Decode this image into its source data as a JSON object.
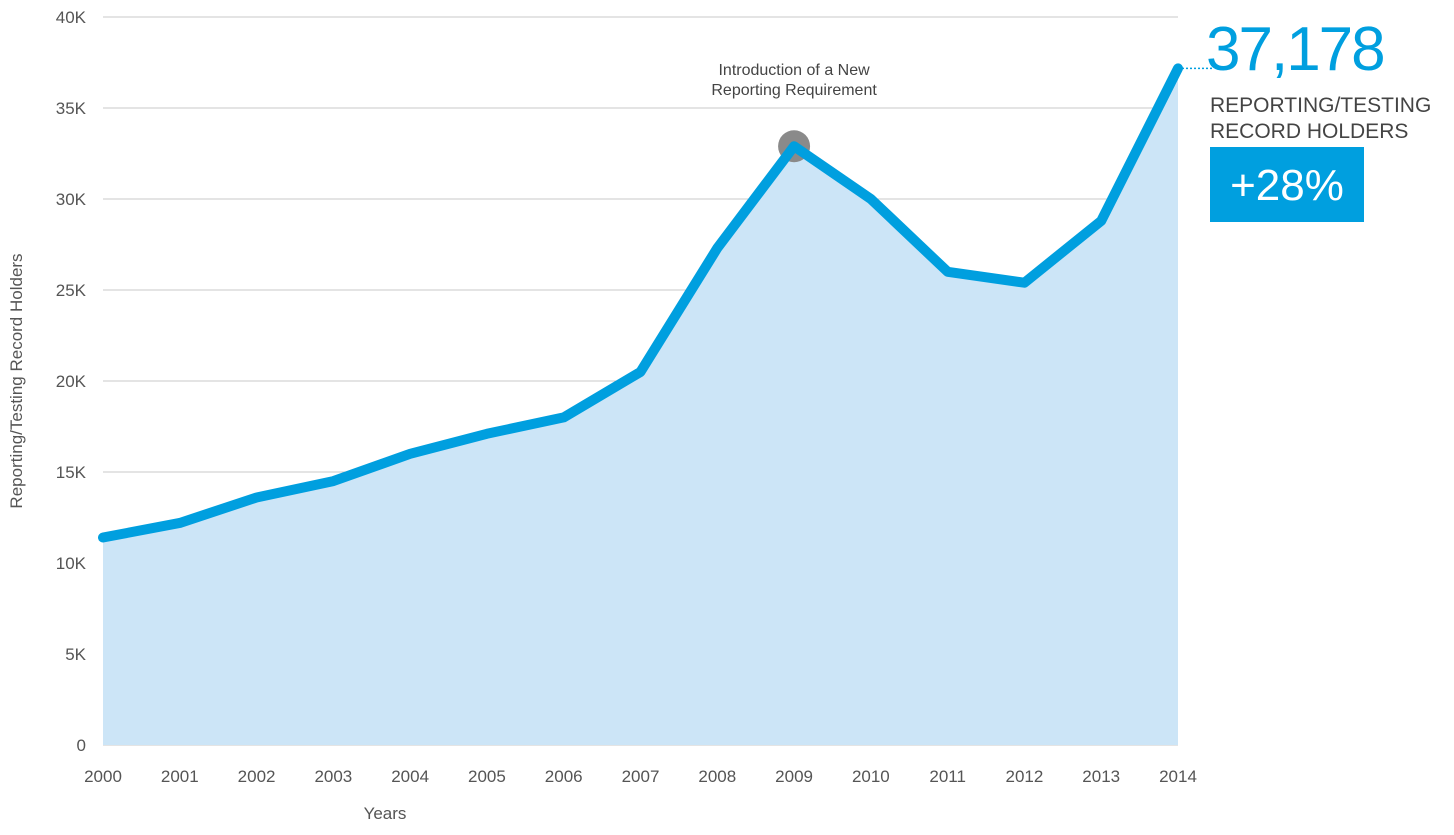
{
  "chart_data": {
    "type": "area",
    "x_label": "Years",
    "y_label": "Reporting/Testing Record Holders",
    "categories": [
      "2000",
      "2001",
      "2002",
      "2003",
      "2004",
      "2005",
      "2006",
      "2007",
      "2008",
      "2009",
      "2010",
      "2011",
      "2012",
      "2013",
      "2014"
    ],
    "series": [
      {
        "name": "Reporting/Testing Record Holders",
        "color": "#009fdf",
        "fill": "#cce5f7",
        "values": [
          11400,
          12200,
          13600,
          14500,
          16000,
          17100,
          18000,
          20500,
          27300,
          32900,
          30000,
          26000,
          25400,
          28800,
          37178
        ],
        "value_labels": [
          null,
          null,
          null,
          null,
          null,
          null,
          null,
          null,
          null,
          null,
          null,
          null,
          null,
          null,
          "37,178"
        ]
      }
    ],
    "ylim": [
      0,
      40000
    ],
    "yticks": [
      {
        "value": 0,
        "label": "0"
      },
      {
        "value": 5000,
        "label": "5K"
      },
      {
        "value": 10000,
        "label": "10K"
      },
      {
        "value": 15000,
        "label": "15K"
      },
      {
        "value": 20000,
        "label": "20K"
      },
      {
        "value": 25000,
        "label": "25K"
      },
      {
        "value": 30000,
        "label": "30K"
      },
      {
        "value": 35000,
        "label": "35K"
      },
      {
        "value": 40000,
        "label": "40K"
      }
    ],
    "grid": true,
    "annotation": {
      "category_index": 9,
      "lines": [
        "Introduction of a New",
        "Reporting Requirement"
      ],
      "marker_color": "#8a8a8a"
    },
    "callout": {
      "lines": [
        "REPORTING/TESTING",
        "RECORD HOLDERS"
      ],
      "change": "+28%",
      "color": "#009fdf"
    }
  }
}
